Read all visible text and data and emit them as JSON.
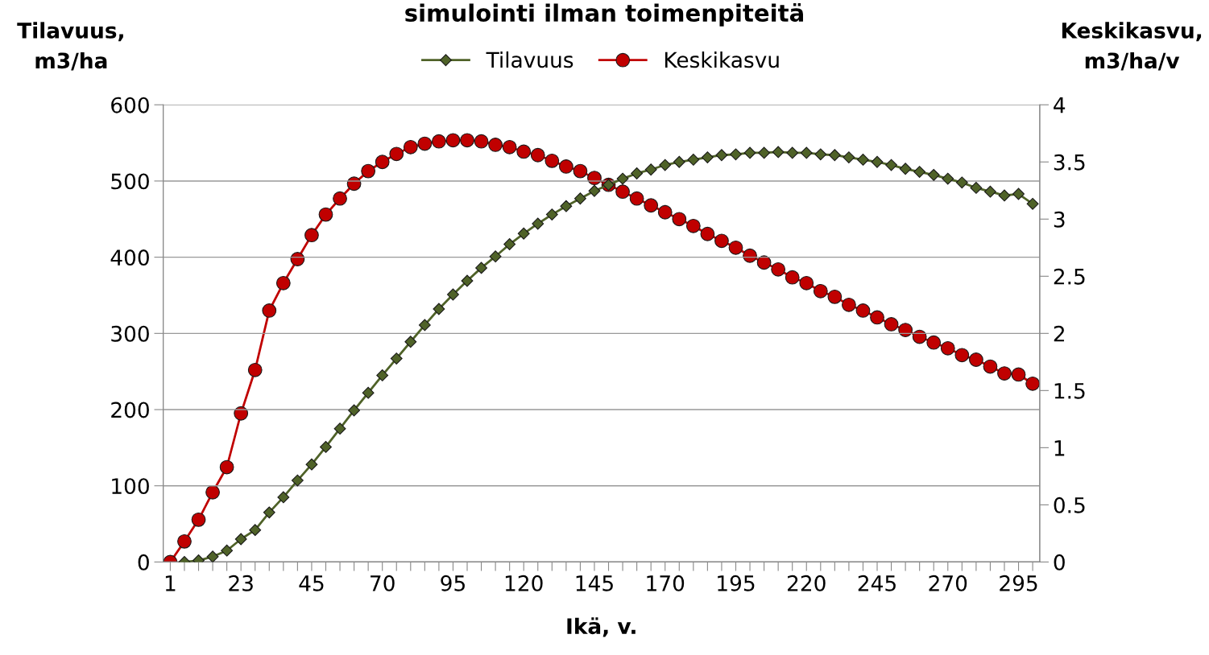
{
  "chart_data": {
    "type": "line",
    "title": "simulointi ilman toimenpiteitä",
    "xlabel": "Ikä, v.",
    "ylabel": "Tilavuus,\nm3/ha",
    "y2label": "Keskikasvu,\nm3/ha/v",
    "categories": [
      "1",
      null,
      null,
      null,
      null,
      "23",
      null,
      null,
      null,
      null,
      "45",
      null,
      null,
      null,
      null,
      "70",
      null,
      null,
      null,
      null,
      "95",
      null,
      null,
      null,
      null,
      "120",
      null,
      null,
      null,
      null,
      "145",
      null,
      null,
      null,
      null,
      "170",
      null,
      null,
      null,
      null,
      "195",
      null,
      null,
      null,
      null,
      "220",
      null,
      null,
      null,
      null,
      "245",
      null,
      null,
      null,
      null,
      "270",
      null,
      null,
      null,
      null,
      "295",
      null
    ],
    "series": [
      {
        "name": "Tilavuus",
        "color": "#4f6228",
        "marker": "diamond",
        "values": [
          null,
          0,
          2,
          7,
          15,
          30,
          42,
          65,
          85,
          107,
          128,
          151,
          175,
          199,
          222,
          245,
          267,
          289,
          311,
          332,
          351,
          369,
          386,
          401,
          417,
          431,
          444,
          456,
          467,
          477,
          487,
          495,
          503,
          510,
          515,
          521,
          525,
          528,
          531,
          534,
          535,
          537,
          537,
          538,
          537,
          537,
          535,
          534,
          531,
          528,
          525,
          521,
          516,
          512,
          508,
          503,
          498,
          491,
          486,
          481,
          483,
          470
        ]
      },
      {
        "name": "Keskikasvu",
        "color": "#c00000",
        "marker": "circle",
        "axis": "y2",
        "values": [
          0,
          0.18,
          0.37,
          0.61,
          0.83,
          1.3,
          1.68,
          2.2,
          2.44,
          2.65,
          2.86,
          3.04,
          3.18,
          3.31,
          3.42,
          3.5,
          3.57,
          3.63,
          3.66,
          3.68,
          3.69,
          3.69,
          3.68,
          3.65,
          3.63,
          3.59,
          3.56,
          3.51,
          3.46,
          3.42,
          3.36,
          3.3,
          3.24,
          3.18,
          3.12,
          3.06,
          3.0,
          2.94,
          2.87,
          2.81,
          2.75,
          2.68,
          2.62,
          2.56,
          2.49,
          2.44,
          2.37,
          2.32,
          2.25,
          2.2,
          2.14,
          2.08,
          2.03,
          1.97,
          1.92,
          1.87,
          1.81,
          1.77,
          1.71,
          1.65,
          1.64,
          1.56
        ]
      }
    ],
    "ylim": [
      0,
      600
    ],
    "yticks": [
      0,
      100,
      200,
      300,
      400,
      500,
      600
    ],
    "y2lim": [
      0,
      4
    ],
    "y2ticks": [
      0,
      {
        "value": 0.5,
        "label": "0.5"
      },
      1,
      {
        "value": 1.5,
        "label": "1.5"
      },
      2,
      {
        "value": 2.5,
        "label": "2.5"
      },
      3,
      {
        "value": 3.5,
        "label": "3.5"
      },
      4
    ],
    "grid": "y",
    "legend": "top",
    "line_style": "solid"
  }
}
